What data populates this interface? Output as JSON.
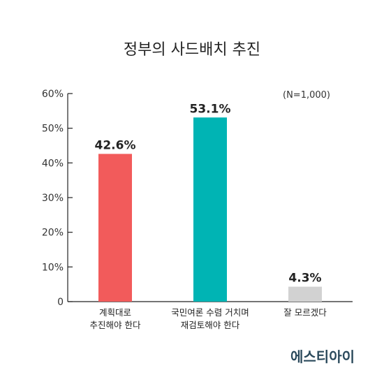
{
  "chart_data": {
    "type": "bar",
    "title": "정부의 사드배치 추진",
    "note": "(N=1,000)",
    "categories": [
      [
        "계획대로",
        "추진해야 한다"
      ],
      [
        "국민여론 수렴 거치며",
        "재검토해야 한다"
      ],
      [
        "잘 모르겠다"
      ]
    ],
    "values": [
      42.6,
      53.1,
      4.3
    ],
    "value_labels": [
      "42.6%",
      "53.1%",
      "4.3%"
    ],
    "bar_colors": [
      "#f25b5b",
      "#00b4b4",
      "#d2d2d2"
    ],
    "ylim": [
      0,
      60
    ],
    "yticks": [
      0,
      10,
      20,
      30,
      40,
      50,
      60
    ],
    "ytick_labels": [
      "0",
      "10%",
      "20%",
      "30%",
      "40%",
      "50%",
      "60%"
    ],
    "xlabel": "",
    "ylabel": "",
    "grid": false
  },
  "branding": {
    "logo_text": "에스티아이"
  }
}
